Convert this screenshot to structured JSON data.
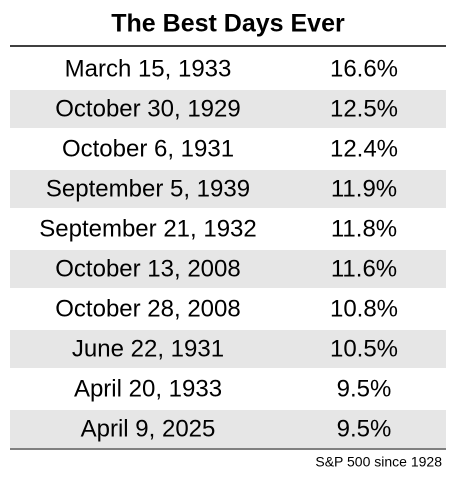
{
  "table": {
    "title": "The Best Days Ever",
    "rows": [
      [
        "March 15, 1933",
        "16.6%"
      ],
      [
        "October 30, 1929",
        "12.5%"
      ],
      [
        "October 6, 1931",
        "12.4%"
      ],
      [
        "September 5, 1939",
        "11.9%"
      ],
      [
        "September 21, 1932",
        "11.8%"
      ],
      [
        "October 13, 2008",
        "11.6%"
      ],
      [
        "October 28, 2008",
        "10.8%"
      ],
      [
        "June 22, 1931",
        "10.5%"
      ],
      [
        "April 20, 1933",
        "9.5%"
      ],
      [
        "April 9, 2025",
        "9.5%"
      ]
    ],
    "footer": "S&P 500 since 1928"
  }
}
